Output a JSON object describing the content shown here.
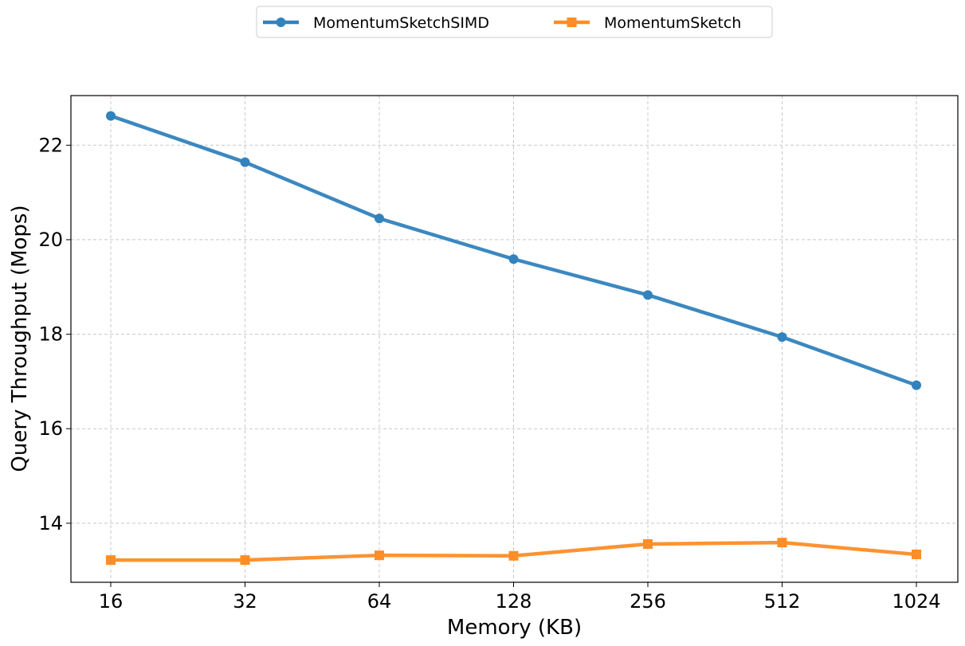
{
  "chart_data": {
    "type": "line",
    "title": "",
    "xlabel": "Memory (KB)",
    "ylabel": "Query Throughput (Mops)",
    "categories": [
      "16",
      "32",
      "64",
      "128",
      "256",
      "512",
      "1024"
    ],
    "ylim": [
      12.75,
      23.05
    ],
    "yticks": [
      14,
      16,
      18,
      20,
      22
    ],
    "grid": true,
    "legend_position": "top-center",
    "series": [
      {
        "name": "MomentumSketchSIMD",
        "color": "#3182bd",
        "marker": "circle",
        "values": [
          22.62,
          21.64,
          20.45,
          19.59,
          18.83,
          17.94,
          16.92
        ]
      },
      {
        "name": "MomentumSketch",
        "color": "#fd8d26",
        "marker": "square",
        "values": [
          13.22,
          13.22,
          13.32,
          13.31,
          13.56,
          13.59,
          13.34
        ]
      }
    ]
  }
}
